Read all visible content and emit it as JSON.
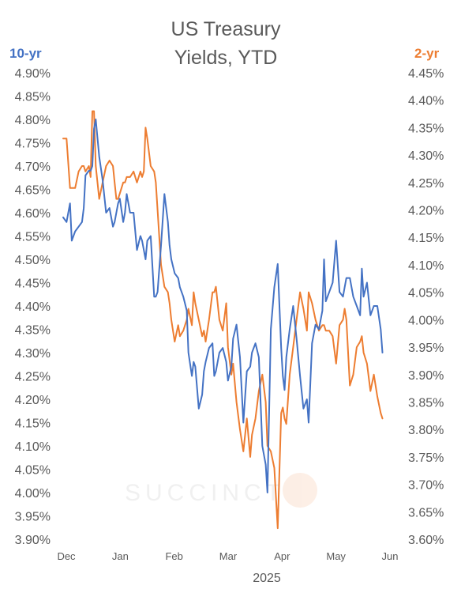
{
  "chart_data": {
    "type": "line",
    "title_lines": [
      "US Treasury",
      "Yields, YTD"
    ],
    "left_axis_label": "10-yr",
    "right_axis_label": "2-yr",
    "x_tick_labels": [
      "Dec",
      "Jan",
      "Feb",
      "Mar",
      "Apr",
      "May",
      "Jun"
    ],
    "x_year_label": "2025",
    "x_range": [
      0,
      189
    ],
    "y_left_range": [
      3.9,
      4.9
    ],
    "y_right_range": [
      3.6,
      4.45
    ],
    "y_left_ticks": [
      "3.90%",
      "3.95%",
      "4.00%",
      "4.05%",
      "4.10%",
      "4.15%",
      "4.20%",
      "4.25%",
      "4.30%",
      "4.35%",
      "4.40%",
      "4.45%",
      "4.50%",
      "4.55%",
      "4.60%",
      "4.65%",
      "4.70%",
      "4.75%",
      "4.80%",
      "4.85%",
      "4.90%"
    ],
    "y_right_ticks": [
      "3.60%",
      "3.65%",
      "3.70%",
      "3.75%",
      "3.80%",
      "3.85%",
      "3.90%",
      "3.95%",
      "4.00%",
      "4.05%",
      "4.10%",
      "4.15%",
      "4.20%",
      "4.25%",
      "4.30%",
      "4.35%",
      "4.40%",
      "4.45%"
    ],
    "colors": {
      "ten_year": "#4472C4",
      "two_year": "#ED7D31",
      "text": "#595959",
      "left_label": "#4472C4",
      "right_label": "#ED7D31"
    },
    "watermark": "SUCCINCT",
    "grid": false,
    "series": [
      {
        "name": "10-yr",
        "axis": "left",
        "x": [
          0,
          2,
          4,
          5,
          7,
          9,
          11,
          12,
          13,
          15,
          16,
          17,
          18,
          19,
          21,
          23,
          25,
          27,
          29,
          30,
          31,
          32,
          33,
          35,
          36,
          37,
          39,
          41,
          43,
          45,
          46,
          47,
          48,
          49,
          51,
          53,
          54,
          55,
          57,
          59,
          61,
          62,
          63,
          65,
          67,
          68,
          70,
          72,
          73,
          75,
          76,
          77,
          79,
          81,
          82,
          83,
          85,
          87,
          88,
          89,
          91,
          93,
          95,
          96,
          98,
          99,
          101,
          103,
          105,
          107,
          109,
          110,
          112,
          114,
          116,
          118,
          119,
          121,
          123,
          125,
          127,
          128,
          129,
          130,
          132,
          134,
          136,
          138,
          140,
          142,
          143,
          145,
          147,
          149,
          151,
          152,
          153,
          155,
          157,
          159,
          161,
          163,
          164,
          165,
          167,
          169,
          171,
          173,
          174,
          175,
          177,
          179,
          181,
          183,
          185,
          186
        ],
        "y": [
          4.59,
          4.58,
          4.62,
          4.54,
          4.56,
          4.57,
          4.58,
          4.61,
          4.68,
          4.69,
          4.69,
          4.7,
          4.78,
          4.8,
          4.72,
          4.67,
          4.6,
          4.61,
          4.57,
          4.58,
          4.6,
          4.62,
          4.63,
          4.58,
          4.6,
          4.64,
          4.6,
          4.6,
          4.52,
          4.55,
          4.54,
          4.52,
          4.5,
          4.54,
          4.55,
          4.42,
          4.42,
          4.43,
          4.53,
          4.64,
          4.58,
          4.53,
          4.5,
          4.47,
          4.46,
          4.44,
          4.42,
          4.39,
          4.3,
          4.25,
          4.28,
          4.27,
          4.18,
          4.21,
          4.26,
          4.28,
          4.31,
          4.32,
          4.25,
          4.26,
          4.3,
          4.31,
          4.28,
          4.24,
          4.27,
          4.33,
          4.36,
          4.29,
          4.15,
          4.26,
          4.27,
          4.3,
          4.32,
          4.29,
          4.1,
          4.06,
          4.0,
          4.35,
          4.44,
          4.49,
          4.31,
          4.25,
          4.22,
          4.29,
          4.35,
          4.4,
          4.33,
          4.25,
          4.18,
          4.2,
          4.15,
          4.32,
          4.36,
          4.35,
          4.39,
          4.5,
          4.41,
          4.43,
          4.45,
          4.54,
          4.43,
          4.42,
          4.44,
          4.46,
          4.46,
          4.42,
          4.4,
          4.38,
          4.48,
          4.42,
          4.45,
          4.38,
          4.4,
          4.4,
          4.35,
          4.3
        ]
      },
      {
        "name": "2-yr",
        "axis": "right",
        "x": [
          0,
          2,
          4,
          5,
          7,
          9,
          11,
          12,
          13,
          15,
          16,
          17,
          18,
          19,
          21,
          23,
          25,
          27,
          29,
          30,
          31,
          32,
          33,
          35,
          36,
          37,
          39,
          41,
          43,
          45,
          46,
          47,
          48,
          49,
          51,
          53,
          54,
          55,
          57,
          59,
          61,
          62,
          63,
          65,
          67,
          68,
          70,
          72,
          73,
          75,
          76,
          77,
          79,
          81,
          82,
          83,
          85,
          87,
          88,
          89,
          91,
          93,
          95,
          96,
          98,
          99,
          101,
          103,
          105,
          107,
          109,
          110,
          112,
          114,
          116,
          118,
          119,
          121,
          123,
          125,
          127,
          128,
          129,
          130,
          132,
          134,
          136,
          138,
          140,
          142,
          143,
          145,
          147,
          149,
          151,
          152,
          153,
          155,
          157,
          159,
          161,
          163,
          164,
          165,
          167,
          169,
          171,
          173,
          174,
          175,
          177,
          179,
          181,
          183,
          185,
          186
        ],
        "y": [
          4.33,
          4.33,
          4.24,
          4.24,
          4.24,
          4.27,
          4.28,
          4.28,
          4.27,
          4.28,
          4.26,
          4.38,
          4.38,
          4.28,
          4.22,
          4.25,
          4.28,
          4.29,
          4.28,
          4.25,
          4.22,
          4.22,
          4.23,
          4.25,
          4.25,
          4.26,
          4.26,
          4.27,
          4.25,
          4.27,
          4.26,
          4.27,
          4.35,
          4.33,
          4.28,
          4.27,
          4.25,
          4.2,
          4.1,
          4.06,
          4.05,
          4.03,
          4.0,
          3.96,
          3.99,
          3.97,
          3.98,
          4.0,
          4.02,
          3.99,
          4.05,
          4.03,
          4.0,
          3.97,
          3.98,
          3.96,
          4.0,
          4.05,
          4.05,
          4.06,
          4.0,
          3.98,
          4.03,
          3.95,
          3.9,
          3.92,
          3.85,
          3.8,
          3.76,
          3.82,
          3.75,
          3.79,
          3.82,
          3.87,
          3.9,
          3.85,
          3.77,
          3.76,
          3.73,
          3.62,
          3.83,
          3.84,
          3.82,
          3.81,
          3.9,
          3.95,
          4.0,
          4.05,
          4.02,
          3.98,
          4.05,
          4.03,
          4.0,
          3.98,
          3.99,
          3.99,
          3.98,
          3.98,
          3.97,
          3.92,
          3.99,
          4.0,
          4.02,
          4.0,
          3.88,
          3.9,
          3.95,
          3.96,
          3.97,
          3.94,
          3.92,
          3.87,
          3.9,
          3.86,
          3.83,
          3.82
        ]
      }
    ]
  }
}
